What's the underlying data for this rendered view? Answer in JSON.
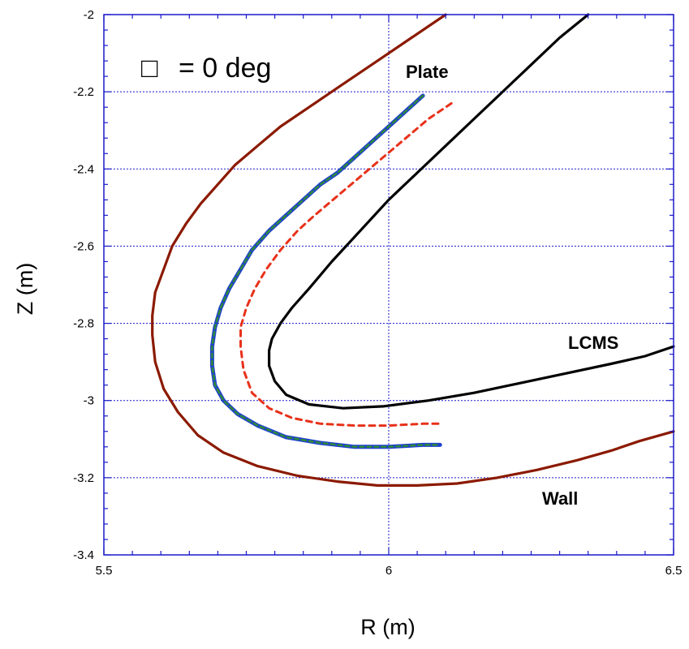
{
  "chart_data": {
    "type": "line",
    "xlabel": "R  (m)",
    "ylabel": "Z  (m)",
    "xlim": [
      5.5,
      6.5
    ],
    "ylim": [
      -3.4,
      -2.0
    ],
    "xticks": [
      5.5,
      6,
      6.5
    ],
    "xtick_labels": [
      "5.5",
      "6",
      "6.5"
    ],
    "yticks": [
      -2.0,
      -2.2,
      -2.4,
      -2.6,
      -2.8,
      -3.0,
      -3.2,
      -3.4
    ],
    "ytick_labels": [
      "-2",
      "-2.2",
      "-2.4",
      "-2.6",
      "-2.8",
      "-3",
      "-3.2",
      "-3.4"
    ],
    "grid": true,
    "annotations": {
      "angle_box": "□",
      "angle_text": "=  0 deg",
      "plate": "Plate",
      "lcms": "LCMS",
      "wall": "Wall"
    },
    "colors": {
      "wall": "#8b1a00",
      "lcms": "#000000",
      "plate_outer": "#1f3fcf",
      "plate_inner": "#2e8b3a",
      "dashed": "#e8311a",
      "grid": "#1a1acc",
      "frame": "#1a1acc"
    },
    "series": [
      {
        "style": "wall",
        "x": [
          6.1,
          6.04,
          5.98,
          5.92,
          5.86,
          5.81,
          5.77,
          5.73,
          5.7,
          5.67,
          5.645,
          5.62,
          5.605,
          5.59,
          5.585,
          5.585,
          5.59,
          5.605,
          5.63,
          5.665,
          5.71,
          5.77,
          5.84,
          5.91,
          5.98,
          6.05,
          6.12,
          6.19,
          6.26,
          6.33,
          6.39,
          6.44,
          6.5
        ],
        "y": [
          -2.0,
          -2.06,
          -2.12,
          -2.18,
          -2.24,
          -2.29,
          -2.34,
          -2.39,
          -2.44,
          -2.49,
          -2.54,
          -2.6,
          -2.66,
          -2.72,
          -2.78,
          -2.83,
          -2.9,
          -2.97,
          -3.03,
          -3.09,
          -3.135,
          -3.17,
          -3.195,
          -3.21,
          -3.22,
          -3.22,
          -3.215,
          -3.2,
          -3.18,
          -3.155,
          -3.13,
          -3.105,
          -3.08
        ]
      },
      {
        "style": "lcms",
        "x": [
          6.35,
          6.3,
          6.25,
          6.2,
          6.15,
          6.1,
          6.05,
          6.0,
          5.95,
          5.9,
          5.86,
          5.83,
          5.81,
          5.795,
          5.79,
          5.79,
          5.8,
          5.82,
          5.86,
          5.92,
          5.99,
          6.07,
          6.15,
          6.23,
          6.31,
          6.39,
          6.45,
          6.5
        ],
        "y": [
          -2.0,
          -2.06,
          -2.13,
          -2.2,
          -2.27,
          -2.34,
          -2.41,
          -2.48,
          -2.56,
          -2.64,
          -2.71,
          -2.76,
          -2.8,
          -2.84,
          -2.87,
          -2.91,
          -2.95,
          -2.985,
          -3.01,
          -3.02,
          -3.015,
          -3.0,
          -2.98,
          -2.955,
          -2.93,
          -2.905,
          -2.885,
          -2.86
        ]
      },
      {
        "style": "plate",
        "x": [
          6.06,
          6.03,
          6.0,
          5.97,
          5.94,
          5.91,
          5.88,
          5.85,
          5.82,
          5.79,
          5.76,
          5.74,
          5.72,
          5.705,
          5.695,
          5.69,
          5.69,
          5.695,
          5.71,
          5.735,
          5.77,
          5.82,
          5.88,
          5.94,
          6.0,
          6.06,
          6.09
        ],
        "y": [
          -2.21,
          -2.25,
          -2.29,
          -2.33,
          -2.37,
          -2.41,
          -2.44,
          -2.48,
          -2.52,
          -2.56,
          -2.61,
          -2.66,
          -2.71,
          -2.76,
          -2.81,
          -2.86,
          -2.91,
          -2.96,
          -3.0,
          -3.035,
          -3.065,
          -3.095,
          -3.11,
          -3.12,
          -3.12,
          -3.115,
          -3.115
        ]
      },
      {
        "style": "dashed",
        "x": [
          6.11,
          6.07,
          6.03,
          5.99,
          5.95,
          5.91,
          5.87,
          5.84,
          5.81,
          5.785,
          5.765,
          5.75,
          5.74,
          5.74,
          5.745,
          5.76,
          5.79,
          5.83,
          5.88,
          5.94,
          6.0,
          6.06,
          6.09
        ],
        "y": [
          -2.23,
          -2.27,
          -2.32,
          -2.37,
          -2.42,
          -2.47,
          -2.52,
          -2.56,
          -2.61,
          -2.66,
          -2.71,
          -2.76,
          -2.81,
          -2.86,
          -2.92,
          -2.98,
          -3.02,
          -3.045,
          -3.06,
          -3.065,
          -3.065,
          -3.06,
          -3.06
        ]
      }
    ]
  }
}
